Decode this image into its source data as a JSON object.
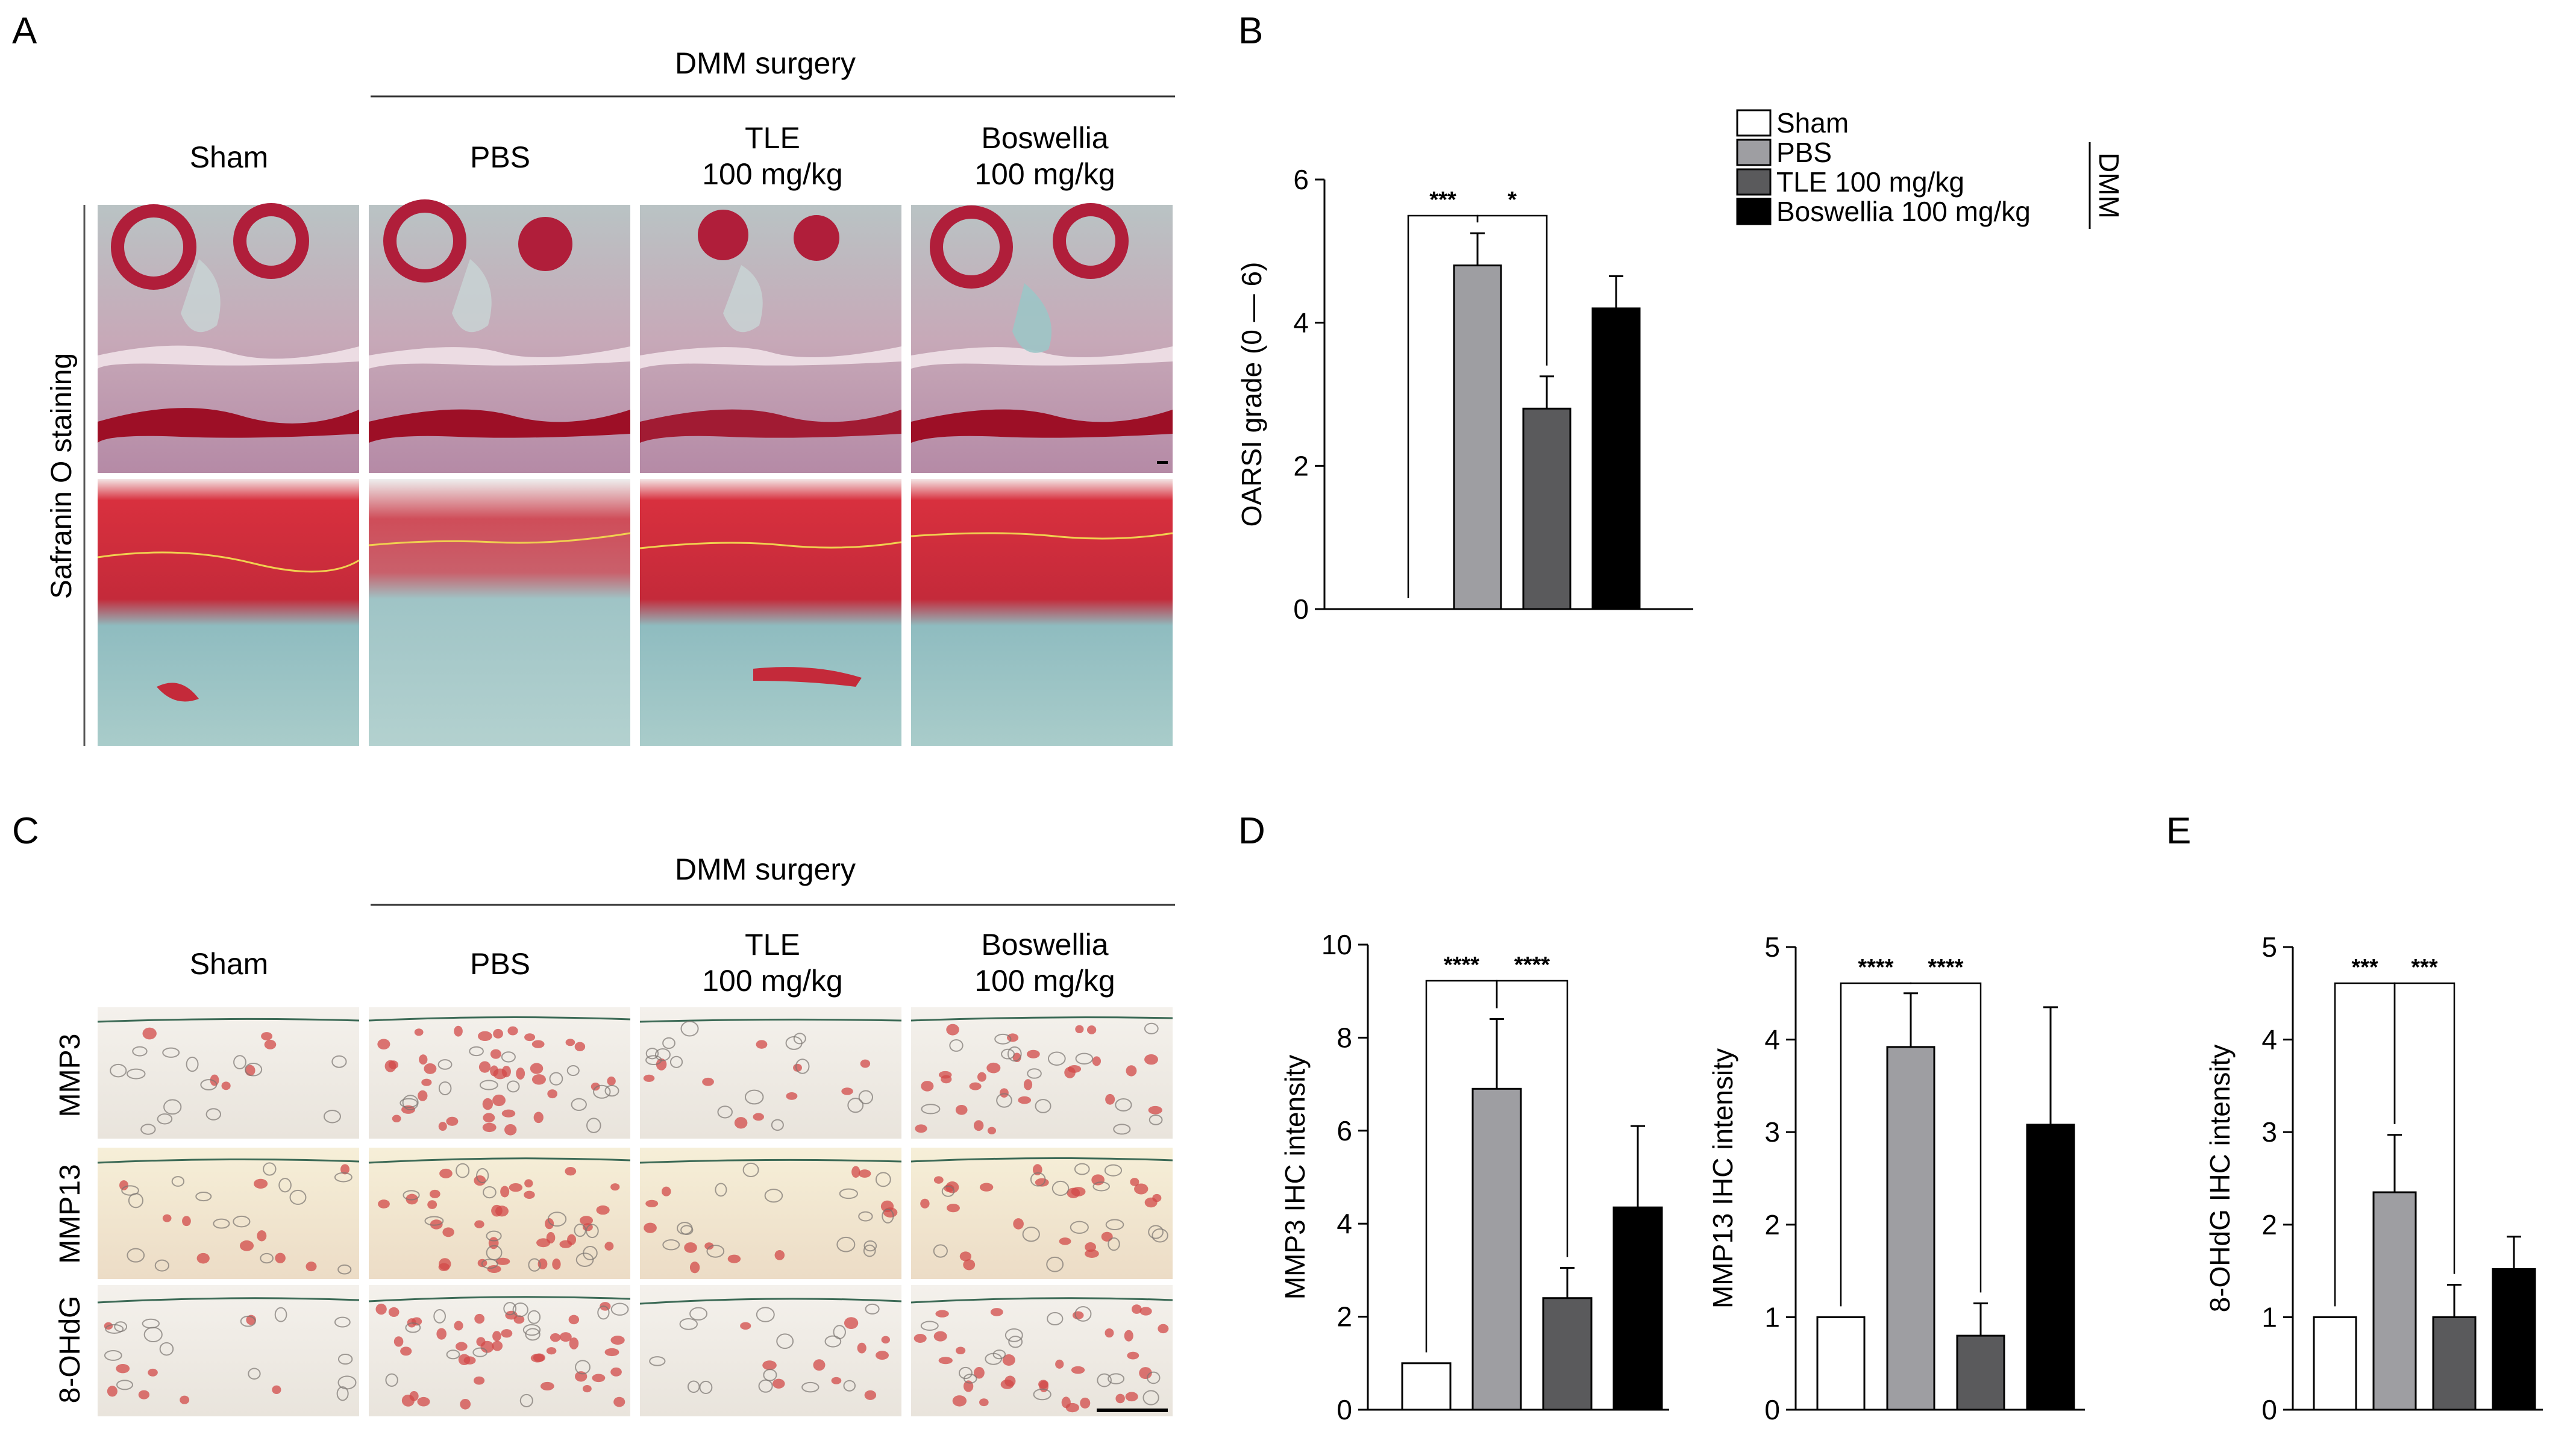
{
  "panels": {
    "A": {
      "letter": "A",
      "header": "DMM surgery",
      "columns": [
        {
          "l1": "Sham",
          "l2": ""
        },
        {
          "l1": "PBS",
          "l2": ""
        },
        {
          "l1": "TLE",
          "l2": "100 mg/kg"
        },
        {
          "l1": "Boswellia",
          "l2": "100 mg/kg"
        }
      ],
      "row_label": "Safranin O staining"
    },
    "C": {
      "letter": "C",
      "header": "DMM surgery",
      "columns": [
        {
          "l1": "Sham",
          "l2": ""
        },
        {
          "l1": "PBS",
          "l2": ""
        },
        {
          "l1": "TLE",
          "l2": "100 mg/kg"
        },
        {
          "l1": "Boswellia",
          "l2": "100 mg/kg"
        }
      ],
      "rows": [
        "MMP3",
        "MMP13",
        "8-OHdG"
      ]
    },
    "B": {
      "letter": "B"
    },
    "D": {
      "letter": "D"
    },
    "E": {
      "letter": "E"
    }
  },
  "legend": {
    "entries": [
      {
        "label": "Sham",
        "color": "#ffffff"
      },
      {
        "label": "PBS",
        "color": "#9e9ea2"
      },
      {
        "label": "TLE 100 mg/kg",
        "color": "#5a5a5c"
      },
      {
        "label": "Boswellia 100 mg/kg",
        "color": "#000000"
      }
    ],
    "group_label": "DMM"
  },
  "chart_data": [
    {
      "id": "B",
      "type": "bar",
      "categories": [
        "Sham",
        "PBS",
        "TLE 100 mg/kg",
        "Boswellia 100 mg/kg"
      ],
      "values": [
        0,
        4.8,
        2.8,
        4.2
      ],
      "errors": [
        0,
        0.45,
        0.45,
        0.45
      ],
      "ylabel": "OARSI grade (0 — 6)",
      "ylim": [
        0,
        6
      ],
      "yticks": [
        0,
        2,
        4,
        6
      ],
      "significance": [
        {
          "from": 0,
          "to": 1,
          "label": "***"
        },
        {
          "from": 1,
          "to": 2,
          "label": "*"
        }
      ]
    },
    {
      "id": "D1",
      "type": "bar",
      "categories": [
        "Sham",
        "PBS",
        "TLE 100 mg/kg",
        "Boswellia 100 mg/kg"
      ],
      "values": [
        1,
        6.9,
        2.4,
        4.35
      ],
      "errors": [
        0,
        1.5,
        0.65,
        1.75
      ],
      "ylabel": "MMP3 IHC intensity",
      "ylim": [
        0,
        10
      ],
      "yticks": [
        0,
        2,
        4,
        6,
        8,
        10
      ],
      "significance": [
        {
          "from": 0,
          "to": 1,
          "label": "****"
        },
        {
          "from": 1,
          "to": 2,
          "label": "****"
        }
      ]
    },
    {
      "id": "D2",
      "type": "bar",
      "categories": [
        "Sham",
        "PBS",
        "TLE 100 mg/kg",
        "Boswellia 100 mg/kg"
      ],
      "values": [
        1,
        3.92,
        0.8,
        3.08
      ],
      "errors": [
        0,
        0.58,
        0.35,
        1.27
      ],
      "ylabel": "MMP13 IHC intensity",
      "ylim": [
        0,
        5
      ],
      "yticks": [
        0,
        1,
        2,
        3,
        4,
        5
      ],
      "significance": [
        {
          "from": 0,
          "to": 1,
          "label": "****"
        },
        {
          "from": 1,
          "to": 2,
          "label": "****"
        }
      ]
    },
    {
      "id": "E",
      "type": "bar",
      "categories": [
        "Sham",
        "PBS",
        "TLE 100 mg/kg",
        "Boswellia 100 mg/kg"
      ],
      "values": [
        1,
        2.35,
        1.0,
        1.52
      ],
      "errors": [
        0,
        0.62,
        0.35,
        0.35
      ],
      "ylabel": "8-OHdG IHC intensity",
      "ylim": [
        0,
        5
      ],
      "yticks": [
        0,
        1,
        2,
        3,
        4,
        5
      ],
      "significance": [
        {
          "from": 0,
          "to": 1,
          "label": "***"
        },
        {
          "from": 1,
          "to": 2,
          "label": "***"
        }
      ]
    }
  ]
}
